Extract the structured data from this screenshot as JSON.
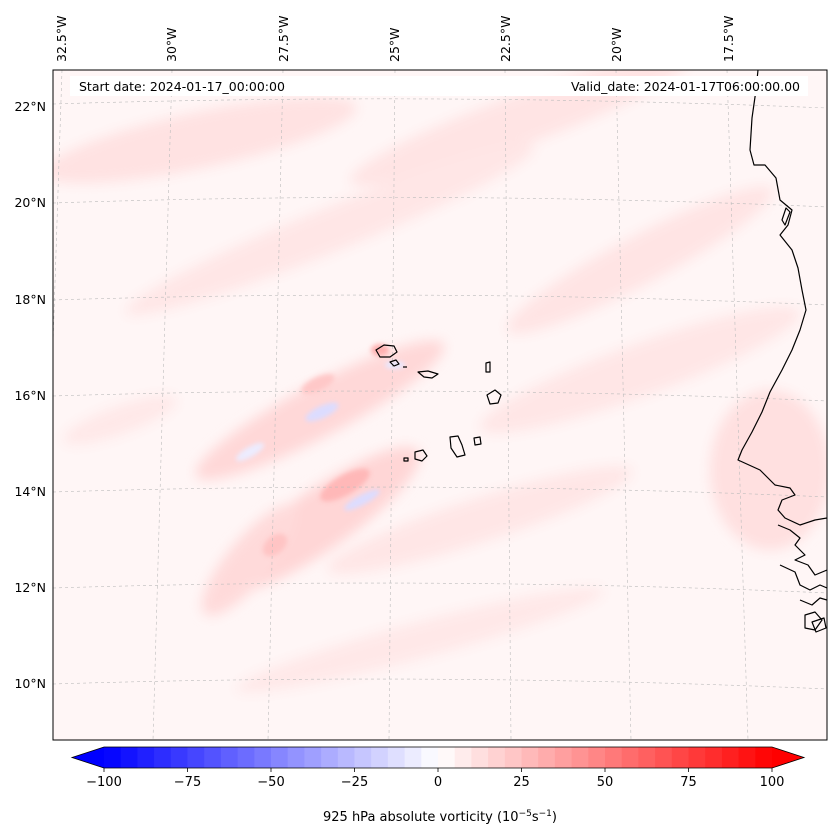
{
  "start_date": "Start date: 2024-01-17_00:00:00",
  "valid_date": "Valid_date: 2024-01-17T06:00:00.00",
  "colorbar": {
    "label": "925 hPa absolute vorticity (10",
    "label_exp1": "−5",
    "label_mid": "s",
    "label_exp2": "−1",
    "label_end": ")",
    "min": -100,
    "max": 100,
    "ticks": [
      {
        "value": -100,
        "text": "−100"
      },
      {
        "value": -75,
        "text": "−75"
      },
      {
        "value": -50,
        "text": "−50"
      },
      {
        "value": -25,
        "text": "−25"
      },
      {
        "value": 0,
        "text": "0"
      },
      {
        "value": 25,
        "text": "25"
      },
      {
        "value": 50,
        "text": "50"
      },
      {
        "value": 75,
        "text": "75"
      },
      {
        "value": 100,
        "text": "100"
      }
    ],
    "neg_color": "#0000ff",
    "pos_color": "#ff0000"
  },
  "longitude_labels": [
    "32.5°W",
    "30°W",
    "27.5°W",
    "25°W",
    "22.5°W",
    "20°W",
    "17.5°W"
  ],
  "latitude_labels": [
    "22°N",
    "20°N",
    "18°N",
    "16°N",
    "14°N",
    "12°N",
    "10°N"
  ],
  "coastline_color": "#000000",
  "gridline_color": "#bbbbbb"
}
